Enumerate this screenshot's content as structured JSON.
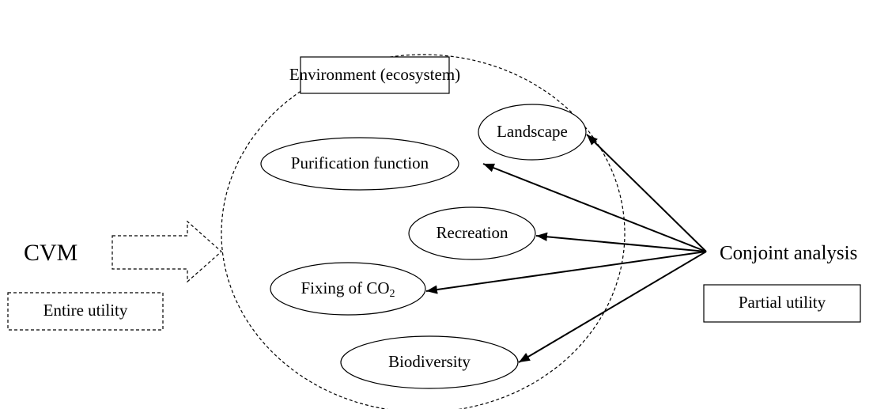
{
  "left": {
    "method": "CVM",
    "utility": "Entire utility"
  },
  "right": {
    "method": "Conjoint analysis",
    "utility": "Partial utility"
  },
  "environment": "Environment (ecosystem)",
  "nodes": [
    {
      "label": "Landscape"
    },
    {
      "label": "Purification function"
    },
    {
      "label": "Recreation"
    },
    {
      "label": "Fixing of CO",
      "subscript": "2"
    },
    {
      "label": "Biodiversity"
    }
  ]
}
